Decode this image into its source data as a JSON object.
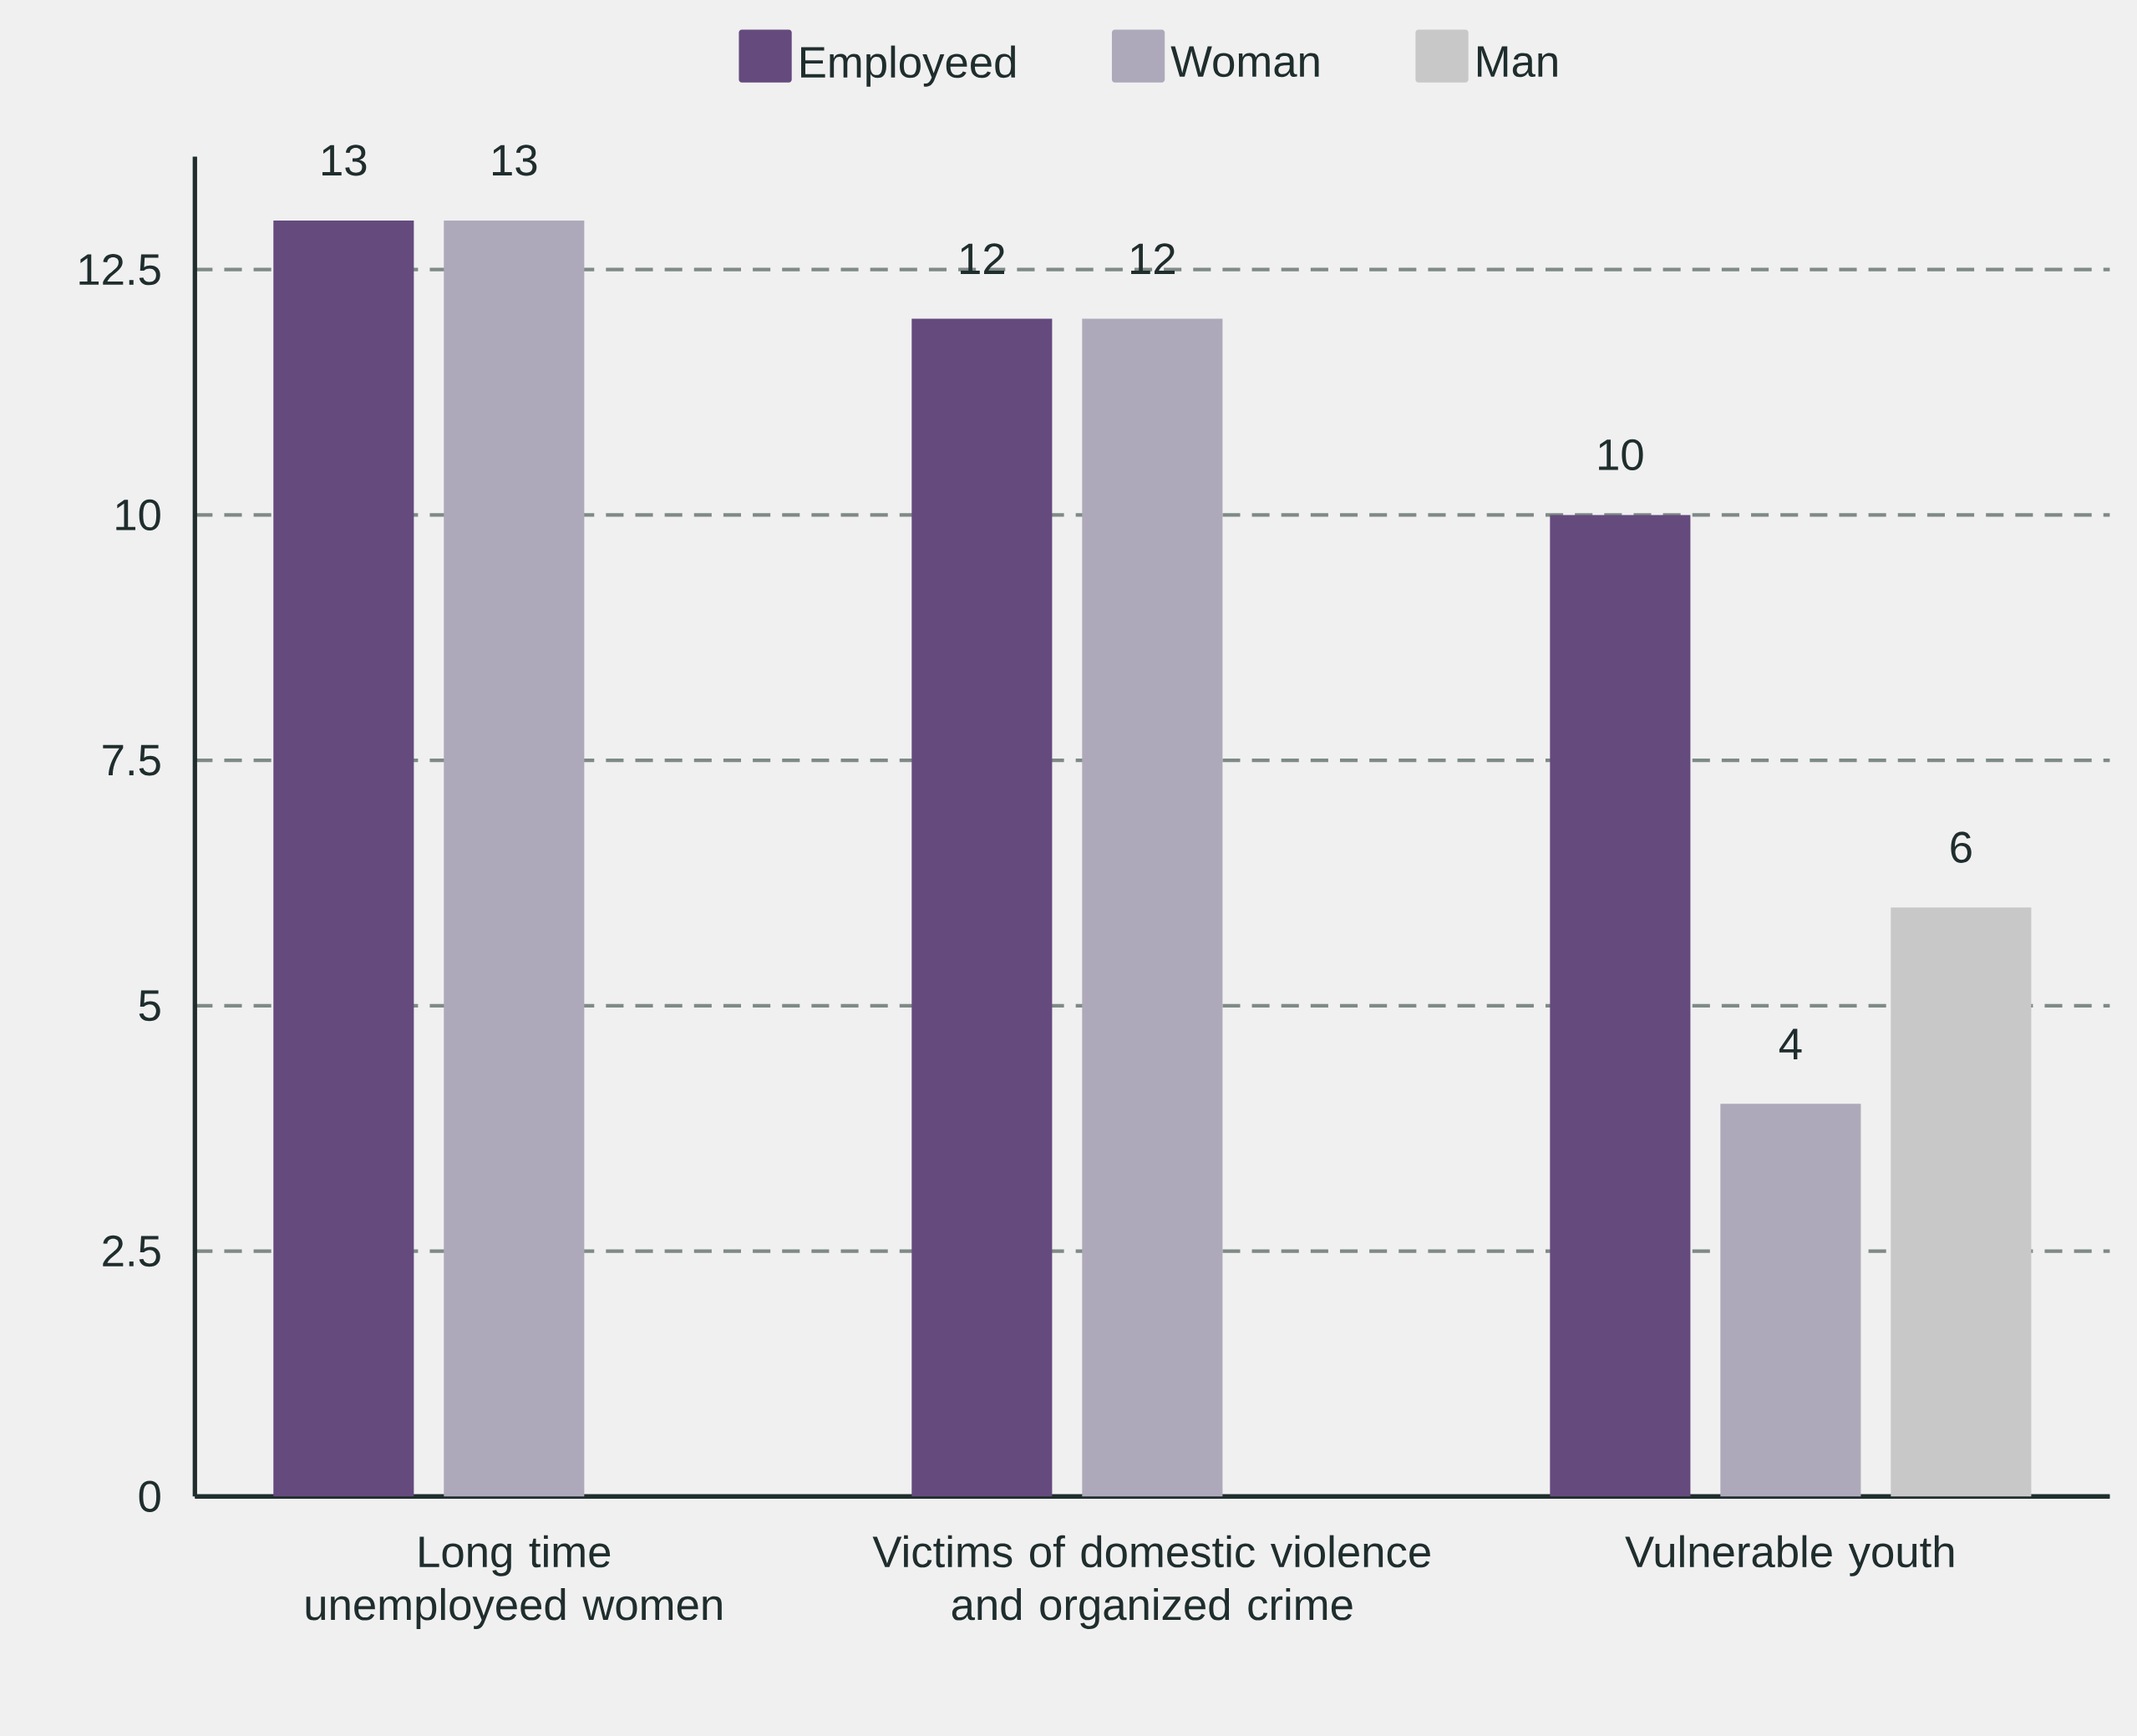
{
  "chart_data": {
    "type": "bar",
    "categories": [
      "Long time unemployeed women",
      "Victims of domestic violence and organized crime",
      "Vulnerable youth"
    ],
    "series": [
      {
        "name": "Employeed",
        "color": "#654a7e",
        "values": [
          13,
          12,
          10
        ]
      },
      {
        "name": "Woman",
        "color": "#aea9ba",
        "values": [
          13,
          12,
          4
        ]
      },
      {
        "name": "Man",
        "color": "#c8c8c8",
        "values": [
          null,
          null,
          6
        ]
      }
    ],
    "ylim": [
      0,
      13.65
    ],
    "yticks": [
      0,
      2.5,
      5,
      7.5,
      10,
      12.5
    ],
    "grid": "y",
    "legend": "top",
    "data_labels": true
  }
}
